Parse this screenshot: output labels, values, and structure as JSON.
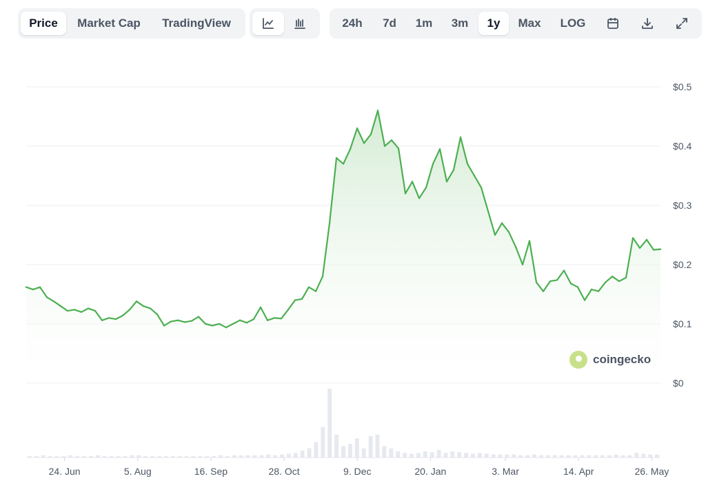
{
  "toolbar": {
    "data_tabs": [
      "Price",
      "Market Cap",
      "TradingView"
    ],
    "active_data_tab": "Price",
    "chart_types": [
      {
        "icon": "line-chart-icon"
      },
      {
        "icon": "candlestick-chart-icon"
      }
    ],
    "active_chart_type": "line-chart-icon",
    "ranges": [
      "24h",
      "7d",
      "1m",
      "3m",
      "1y",
      "Max",
      "LOG"
    ],
    "active_range": "1y",
    "actions": [
      {
        "icon": "calendar-icon"
      },
      {
        "icon": "download-icon"
      },
      {
        "icon": "expand-icon"
      }
    ]
  },
  "brand": {
    "name": "coingecko",
    "icon": "coingecko-logo-icon"
  },
  "colors": {
    "line": "#4caf50",
    "fill_top": "#cfe9cf",
    "volume": "#e6e9ee",
    "active_tab_bg": "#ffffff",
    "toolbar_bg": "#f1f3f5"
  },
  "chart_data": {
    "type": "line",
    "title": "",
    "xlabel": "",
    "ylabel": "",
    "x_start": "2023-06-02",
    "x_end": "2024-05-31",
    "x_ticks": [
      "24. Jun",
      "5. Aug",
      "16. Sep",
      "28. Oct",
      "9. Dec",
      "20. Jan",
      "3. Mar",
      "14. Apr",
      "26. May"
    ],
    "y_ticks": [
      "$0.5",
      "$0.4",
      "$0.3",
      "$0.2",
      "$0.1",
      "$0"
    ],
    "ylim": [
      0,
      0.5
    ],
    "grid": true,
    "series": [
      {
        "name": "",
        "values": [
          0.162,
          0.158,
          0.162,
          0.145,
          0.138,
          0.13,
          0.122,
          0.124,
          0.12,
          0.126,
          0.122,
          0.106,
          0.11,
          0.108,
          0.114,
          0.124,
          0.138,
          0.13,
          0.126,
          0.116,
          0.097,
          0.104,
          0.106,
          0.103,
          0.105,
          0.112,
          0.1,
          0.097,
          0.1,
          0.094,
          0.1,
          0.106,
          0.102,
          0.108,
          0.128,
          0.106,
          0.11,
          0.109,
          0.124,
          0.14,
          0.142,
          0.162,
          0.155,
          0.18,
          0.27,
          0.38,
          0.37,
          0.395,
          0.43,
          0.405,
          0.42,
          0.46,
          0.4,
          0.41,
          0.396,
          0.32,
          0.34,
          0.312,
          0.33,
          0.37,
          0.395,
          0.34,
          0.36,
          0.415,
          0.37,
          0.35,
          0.33,
          0.29,
          0.25,
          0.27,
          0.255,
          0.23,
          0.2,
          0.24,
          0.17,
          0.155,
          0.172,
          0.174,
          0.19,
          0.168,
          0.162,
          0.14,
          0.158,
          0.155,
          0.17,
          0.18,
          0.172,
          0.178,
          0.245,
          0.228,
          0.242,
          0.225,
          0.226
        ],
        "volume": [
          2,
          2,
          3,
          2,
          2,
          2,
          3,
          2,
          2,
          2,
          3,
          2,
          2,
          2,
          2,
          3,
          3,
          2,
          2,
          2,
          2,
          2,
          2,
          2,
          2,
          2,
          2,
          2,
          3,
          2,
          3,
          3,
          3,
          3,
          3,
          4,
          3,
          4,
          5,
          6,
          9,
          12,
          20,
          40,
          90,
          30,
          15,
          18,
          25,
          12,
          28,
          30,
          15,
          12,
          8,
          6,
          5,
          6,
          8,
          7,
          10,
          6,
          8,
          7,
          6,
          5,
          6,
          5,
          4,
          4,
          4,
          4,
          3,
          3,
          4,
          3,
          3,
          3,
          3,
          3,
          3,
          3,
          3,
          3,
          3,
          3,
          4,
          3,
          3,
          6,
          5,
          4,
          4
        ]
      }
    ]
  }
}
